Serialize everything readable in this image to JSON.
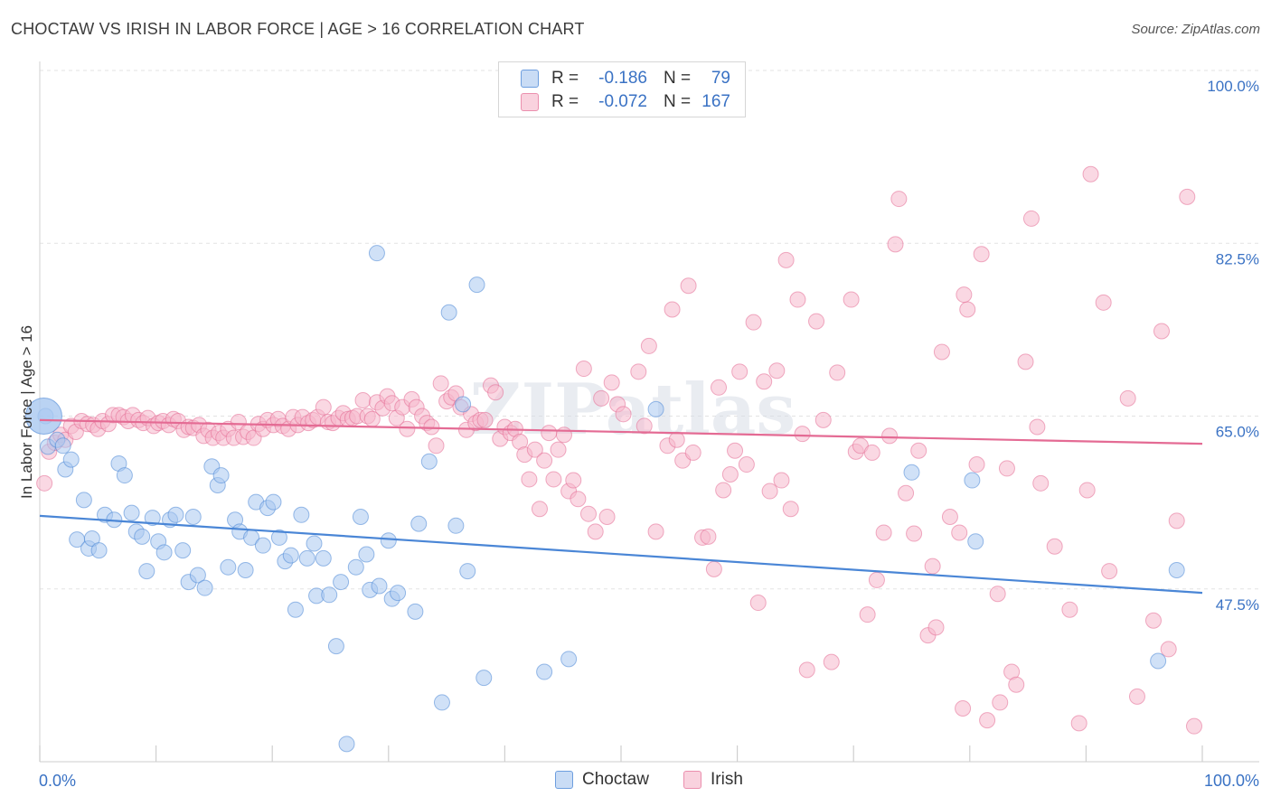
{
  "header": {
    "title": "CHOCTAW VS IRISH IN LABOR FORCE | AGE > 16 CORRELATION CHART",
    "source": "Source: ZipAtlas.com"
  },
  "watermark": "ZIPatlas",
  "legend": {
    "rows": [
      {
        "swatch_color": "#a9c8f0",
        "r_label": "R =",
        "r_value": "-0.186",
        "n_label": "N =",
        "n_value": "79"
      },
      {
        "swatch_color": "#f5b8cc",
        "r_label": "R =",
        "r_value": "-0.072",
        "n_label": "N =",
        "n_value": "167"
      }
    ]
  },
  "bottom_legend": [
    {
      "label": "Choctaw",
      "color": "#a9c8f0"
    },
    {
      "label": "Irish",
      "color": "#f5b8cc"
    }
  ],
  "chart_data": {
    "type": "scatter",
    "title": "CHOCTAW VS IRISH IN LABOR FORCE | AGE > 16 CORRELATION CHART",
    "xlabel": "",
    "ylabel": "In Labor Force | Age > 16",
    "xlim": [
      0,
      100
    ],
    "ylim": [
      30,
      100
    ],
    "x_tick_labels": [
      "0.0%",
      "100.0%"
    ],
    "y_ticks": [
      47.5,
      65.0,
      82.5,
      100.0
    ],
    "y_tick_labels": [
      "47.5%",
      "65.0%",
      "82.5%",
      "100.0%"
    ],
    "grid": "horizontal dashed",
    "series": [
      {
        "name": "Choctaw",
        "color": "#4a86d6",
        "fill": "#a9c8f0",
        "trend": {
          "x0": 0,
          "y0": 54.9,
          "x1": 100,
          "y1": 47.1
        },
        "points": [
          [
            0.5,
            65.0
          ],
          [
            0.7,
            61.9
          ],
          [
            1.5,
            62.6
          ],
          [
            2.0,
            62.0
          ],
          [
            2.2,
            59.6
          ],
          [
            2.7,
            60.6
          ],
          [
            3.2,
            52.5
          ],
          [
            3.8,
            56.5
          ],
          [
            4.2,
            51.6
          ],
          [
            4.5,
            52.6
          ],
          [
            5.1,
            51.4
          ],
          [
            5.6,
            55.0
          ],
          [
            6.4,
            54.5
          ],
          [
            6.8,
            60.2
          ],
          [
            7.3,
            59.0
          ],
          [
            7.9,
            55.2
          ],
          [
            8.3,
            53.3
          ],
          [
            8.8,
            52.8
          ],
          [
            9.2,
            49.3
          ],
          [
            9.7,
            54.7
          ],
          [
            10.2,
            52.3
          ],
          [
            10.7,
            51.2
          ],
          [
            11.2,
            54.5
          ],
          [
            11.7,
            55.0
          ],
          [
            12.3,
            51.4
          ],
          [
            12.8,
            48.2
          ],
          [
            13.2,
            54.8
          ],
          [
            13.6,
            48.9
          ],
          [
            14.2,
            47.6
          ],
          [
            14.8,
            59.9
          ],
          [
            15.3,
            58.0
          ],
          [
            15.6,
            59.0
          ],
          [
            16.2,
            49.7
          ],
          [
            16.8,
            54.5
          ],
          [
            17.2,
            53.3
          ],
          [
            17.7,
            49.4
          ],
          [
            18.2,
            52.7
          ],
          [
            18.6,
            56.3
          ],
          [
            19.2,
            51.9
          ],
          [
            19.6,
            55.7
          ],
          [
            20.1,
            56.3
          ],
          [
            20.6,
            52.7
          ],
          [
            21.1,
            50.3
          ],
          [
            21.6,
            50.9
          ],
          [
            22.0,
            45.4
          ],
          [
            22.5,
            55.0
          ],
          [
            23.0,
            50.6
          ],
          [
            23.6,
            52.1
          ],
          [
            23.8,
            46.8
          ],
          [
            24.4,
            50.6
          ],
          [
            24.9,
            46.9
          ],
          [
            25.5,
            41.7
          ],
          [
            25.9,
            48.2
          ],
          [
            26.4,
            31.8
          ],
          [
            27.2,
            49.7
          ],
          [
            27.6,
            54.8
          ],
          [
            28.1,
            51.0
          ],
          [
            28.4,
            47.4
          ],
          [
            29.2,
            47.8
          ],
          [
            30.0,
            52.4
          ],
          [
            30.3,
            46.5
          ],
          [
            30.8,
            47.1
          ],
          [
            32.3,
            45.2
          ],
          [
            32.6,
            54.1
          ],
          [
            33.5,
            60.4
          ],
          [
            34.6,
            36.0
          ],
          [
            35.2,
            75.5
          ],
          [
            35.8,
            53.9
          ],
          [
            36.4,
            66.2
          ],
          [
            36.8,
            49.3
          ],
          [
            37.6,
            78.3
          ],
          [
            38.2,
            38.5
          ],
          [
            43.4,
            39.1
          ],
          [
            45.5,
            40.4
          ],
          [
            53.0,
            65.7
          ],
          [
            75.0,
            59.3
          ],
          [
            80.2,
            58.5
          ],
          [
            80.5,
            52.3
          ],
          [
            96.2,
            40.2
          ],
          [
            97.8,
            49.4
          ],
          [
            29.0,
            81.5
          ]
        ]
      },
      {
        "name": "Irish",
        "color": "#e46b94",
        "fill": "#f5b8cc",
        "trend": {
          "x0": 0,
          "y0": 64.6,
          "x1": 100,
          "y1": 62.2
        },
        "points": [
          [
            0.4,
            58.2
          ],
          [
            0.8,
            61.4
          ],
          [
            1.3,
            62.3
          ],
          [
            1.8,
            63.1
          ],
          [
            2.2,
            62.6
          ],
          [
            2.7,
            64.0
          ],
          [
            3.1,
            63.4
          ],
          [
            3.6,
            64.5
          ],
          [
            4.1,
            64.2
          ],
          [
            4.6,
            64.1
          ],
          [
            5.0,
            63.7
          ],
          [
            5.4,
            64.5
          ],
          [
            5.9,
            64.2
          ],
          [
            6.3,
            65.1
          ],
          [
            6.8,
            65.1
          ],
          [
            7.2,
            64.9
          ],
          [
            7.6,
            64.5
          ],
          [
            8.0,
            65.1
          ],
          [
            8.5,
            64.6
          ],
          [
            8.9,
            64.3
          ],
          [
            9.3,
            64.8
          ],
          [
            9.8,
            64.0
          ],
          [
            10.2,
            64.3
          ],
          [
            10.6,
            64.5
          ],
          [
            11.1,
            64.1
          ],
          [
            11.5,
            64.7
          ],
          [
            11.9,
            64.5
          ],
          [
            12.4,
            63.6
          ],
          [
            12.8,
            63.9
          ],
          [
            13.2,
            63.8
          ],
          [
            13.7,
            64.1
          ],
          [
            14.1,
            63.0
          ],
          [
            14.5,
            63.6
          ],
          [
            14.9,
            62.8
          ],
          [
            15.4,
            63.3
          ],
          [
            15.8,
            62.8
          ],
          [
            16.2,
            63.7
          ],
          [
            16.7,
            62.8
          ],
          [
            17.1,
            64.4
          ],
          [
            17.5,
            62.9
          ],
          [
            17.9,
            63.4
          ],
          [
            18.4,
            62.8
          ],
          [
            18.8,
            64.2
          ],
          [
            19.2,
            63.7
          ],
          [
            19.6,
            64.6
          ],
          [
            20.1,
            64.1
          ],
          [
            20.5,
            64.7
          ],
          [
            20.9,
            64.0
          ],
          [
            21.4,
            63.7
          ],
          [
            21.8,
            64.9
          ],
          [
            22.2,
            64.1
          ],
          [
            22.6,
            64.9
          ],
          [
            23.1,
            64.3
          ],
          [
            23.5,
            64.6
          ],
          [
            23.9,
            64.9
          ],
          [
            24.4,
            65.9
          ],
          [
            24.8,
            64.4
          ],
          [
            25.2,
            64.3
          ],
          [
            25.7,
            64.8
          ],
          [
            26.1,
            65.3
          ],
          [
            26.5,
            64.7
          ],
          [
            26.9,
            64.8
          ],
          [
            27.3,
            65.0
          ],
          [
            27.8,
            66.6
          ],
          [
            28.2,
            65.0
          ],
          [
            28.6,
            64.7
          ],
          [
            29.0,
            66.4
          ],
          [
            29.5,
            65.8
          ],
          [
            29.9,
            67.0
          ],
          [
            30.3,
            66.3
          ],
          [
            30.7,
            64.8
          ],
          [
            31.2,
            65.9
          ],
          [
            31.6,
            63.7
          ],
          [
            32.0,
            66.7
          ],
          [
            32.4,
            65.9
          ],
          [
            32.9,
            65.0
          ],
          [
            33.3,
            64.3
          ],
          [
            33.7,
            63.9
          ],
          [
            34.1,
            62.0
          ],
          [
            34.5,
            68.3
          ],
          [
            35.0,
            66.5
          ],
          [
            35.4,
            66.9
          ],
          [
            35.8,
            67.3
          ],
          [
            36.2,
            65.9
          ],
          [
            36.7,
            63.6
          ],
          [
            37.1,
            65.2
          ],
          [
            37.5,
            64.3
          ],
          [
            37.9,
            64.6
          ],
          [
            38.3,
            64.6
          ],
          [
            38.8,
            68.1
          ],
          [
            39.2,
            67.4
          ],
          [
            39.6,
            62.7
          ],
          [
            40.0,
            63.9
          ],
          [
            40.5,
            63.3
          ],
          [
            40.9,
            63.7
          ],
          [
            41.3,
            62.4
          ],
          [
            41.7,
            61.1
          ],
          [
            42.1,
            58.6
          ],
          [
            42.6,
            61.6
          ],
          [
            43.0,
            55.6
          ],
          [
            43.4,
            60.5
          ],
          [
            43.8,
            63.3
          ],
          [
            44.2,
            58.6
          ],
          [
            44.6,
            61.6
          ],
          [
            45.1,
            63.1
          ],
          [
            45.5,
            57.4
          ],
          [
            45.9,
            58.5
          ],
          [
            46.3,
            56.6
          ],
          [
            46.8,
            69.8
          ],
          [
            47.2,
            55.1
          ],
          [
            47.8,
            53.3
          ],
          [
            48.3,
            66.8
          ],
          [
            48.8,
            54.8
          ],
          [
            49.2,
            68.4
          ],
          [
            49.7,
            66.2
          ],
          [
            50.2,
            65.2
          ],
          [
            51.5,
            69.5
          ],
          [
            52.0,
            64.0
          ],
          [
            52.4,
            72.1
          ],
          [
            53.0,
            53.3
          ],
          [
            54.0,
            62.0
          ],
          [
            54.4,
            75.8
          ],
          [
            54.8,
            62.6
          ],
          [
            55.3,
            60.5
          ],
          [
            55.8,
            78.2
          ],
          [
            56.2,
            61.3
          ],
          [
            57.0,
            52.7
          ],
          [
            57.5,
            52.8
          ],
          [
            58.0,
            49.5
          ],
          [
            58.4,
            67.9
          ],
          [
            58.8,
            57.5
          ],
          [
            59.4,
            59.1
          ],
          [
            59.8,
            61.5
          ],
          [
            60.2,
            69.5
          ],
          [
            60.8,
            60.1
          ],
          [
            61.4,
            74.5
          ],
          [
            61.8,
            46.1
          ],
          [
            62.3,
            68.5
          ],
          [
            62.8,
            57.4
          ],
          [
            63.4,
            69.6
          ],
          [
            63.8,
            58.5
          ],
          [
            64.2,
            80.8
          ],
          [
            64.6,
            55.6
          ],
          [
            65.2,
            76.8
          ],
          [
            65.6,
            63.2
          ],
          [
            66.0,
            39.3
          ],
          [
            66.8,
            74.6
          ],
          [
            67.4,
            64.6
          ],
          [
            68.1,
            40.1
          ],
          [
            68.6,
            69.4
          ],
          [
            69.8,
            76.8
          ],
          [
            70.2,
            61.4
          ],
          [
            70.6,
            62.0
          ],
          [
            71.2,
            44.9
          ],
          [
            71.6,
            61.3
          ],
          [
            72.0,
            48.4
          ],
          [
            72.6,
            53.2
          ],
          [
            73.1,
            63.0
          ],
          [
            73.6,
            82.4
          ],
          [
            74.5,
            57.2
          ],
          [
            75.2,
            53.1
          ],
          [
            75.6,
            61.5
          ],
          [
            76.4,
            42.8
          ],
          [
            76.8,
            49.8
          ],
          [
            77.1,
            43.6
          ],
          [
            77.6,
            71.5
          ],
          [
            78.3,
            54.8
          ],
          [
            79.1,
            53.2
          ],
          [
            79.8,
            75.8
          ],
          [
            80.6,
            60.1
          ],
          [
            81.0,
            81.4
          ],
          [
            81.5,
            34.2
          ],
          [
            82.4,
            47.0
          ],
          [
            83.2,
            59.7
          ],
          [
            83.6,
            39.1
          ],
          [
            84.0,
            37.8
          ],
          [
            84.8,
            70.5
          ],
          [
            85.8,
            63.9
          ],
          [
            86.1,
            58.2
          ],
          [
            87.3,
            51.8
          ],
          [
            88.6,
            45.4
          ],
          [
            89.4,
            33.9
          ],
          [
            90.1,
            57.5
          ],
          [
            91.5,
            76.5
          ],
          [
            92.0,
            49.3
          ],
          [
            93.6,
            66.8
          ],
          [
            94.4,
            36.6
          ],
          [
            95.8,
            44.3
          ],
          [
            96.5,
            73.6
          ],
          [
            97.1,
            41.4
          ],
          [
            97.8,
            54.4
          ],
          [
            98.7,
            87.2
          ],
          [
            99.3,
            33.6
          ],
          [
            79.4,
            35.4
          ],
          [
            82.6,
            36.0
          ],
          [
            90.4,
            89.5
          ],
          [
            85.3,
            85.0
          ],
          [
            73.9,
            87.0
          ],
          [
            79.5,
            77.3
          ]
        ]
      }
    ]
  },
  "axis": {
    "x_tick_left": "0.0%",
    "x_tick_right": "100.0%",
    "ylabel": "In Labor Force | Age > 16"
  }
}
